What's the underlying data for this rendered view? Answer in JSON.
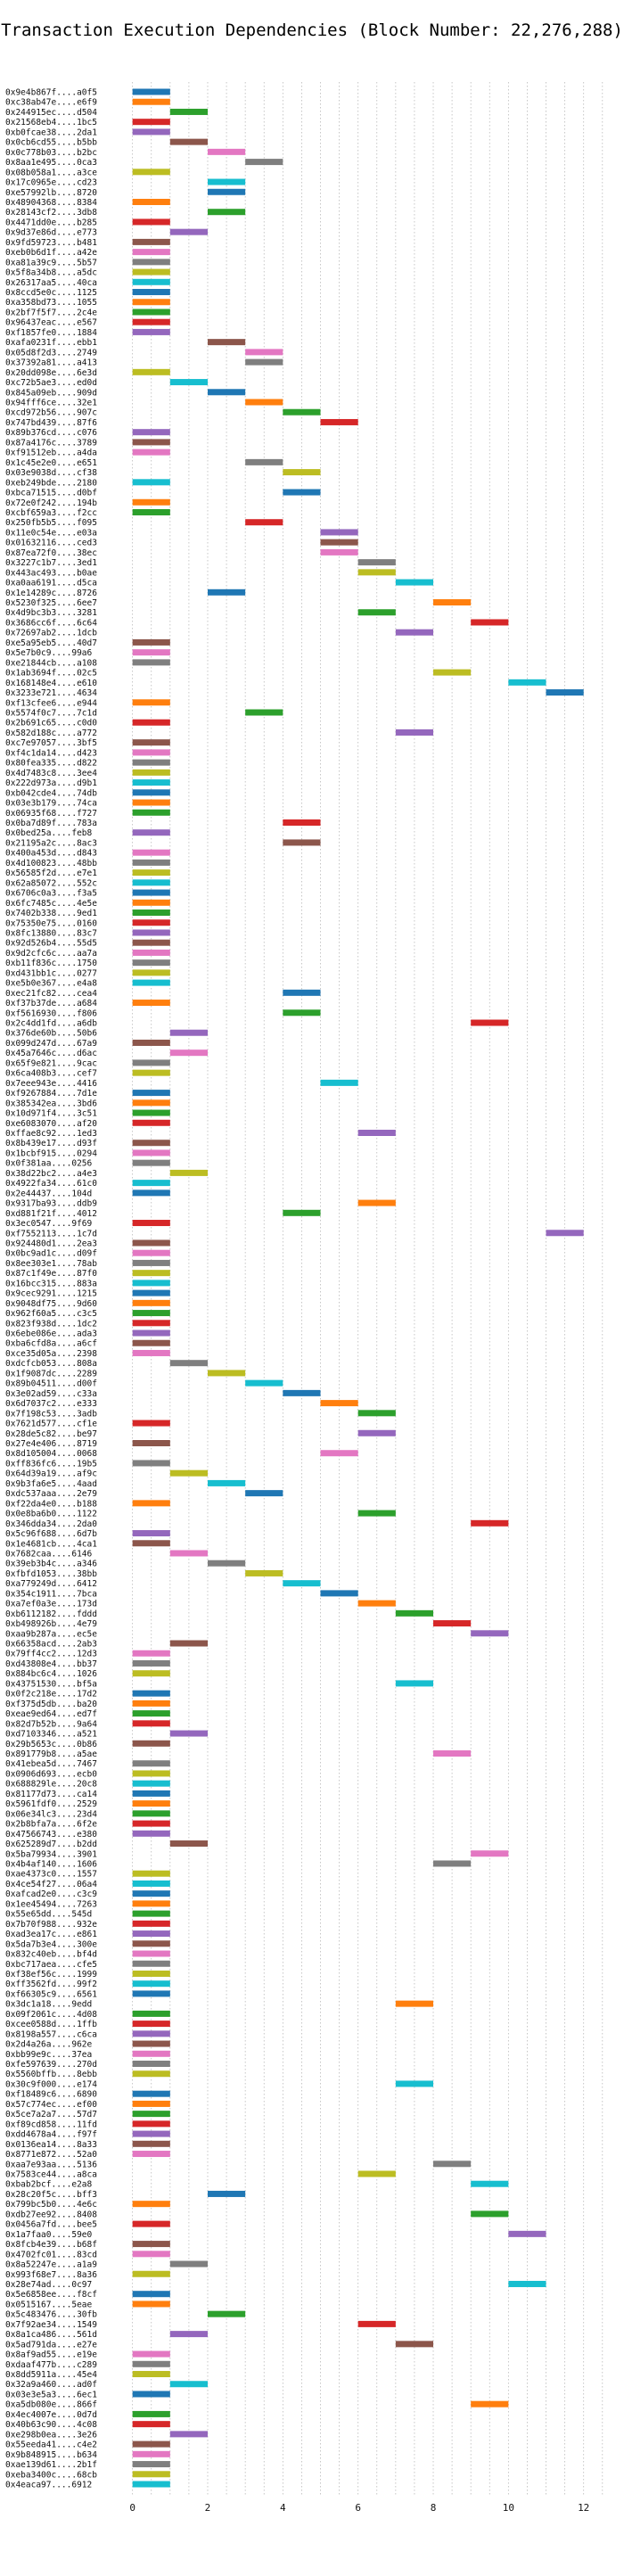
{
  "chart_data": {
    "type": "gantt",
    "title": "Transaction Execution Dependencies (Block Number: 22,276,288)",
    "xlabel": "",
    "ylabel": "",
    "xlim": [
      -0.3,
      12.6
    ],
    "x_ticks": [
      0,
      2,
      4,
      6,
      8,
      10,
      12
    ],
    "grid": true,
    "palette": [
      "#1f77b4",
      "#ff7f0e",
      "#2ca02c",
      "#d62728",
      "#9467bd",
      "#8c564b",
      "#e377c2",
      "#7f7f7f",
      "#bcbd22",
      "#17becf"
    ],
    "rows": [
      {
        "label": "0x9e4b867f....a0f5",
        "start": 0
      },
      {
        "label": "0xc38ab47e....e6f9",
        "start": 0
      },
      {
        "label": "0x244915ec....d504",
        "start": 1
      },
      {
        "label": "0x21568eb4....1bc5",
        "start": 0
      },
      {
        "label": "0xb0fcae38....2da1",
        "start": 0
      },
      {
        "label": "0x0cb6cd55....b5bb",
        "start": 1
      },
      {
        "label": "0x0c778b03....b2bc",
        "start": 2
      },
      {
        "label": "0x8aa1e495....0ca3",
        "start": 3
      },
      {
        "label": "0x08b058a1....a3ce",
        "start": 0
      },
      {
        "label": "0x17c0965e....cd23",
        "start": 2
      },
      {
        "label": "0xe57992lb....8720",
        "start": 2
      },
      {
        "label": "0x48904368....8384",
        "start": 0
      },
      {
        "label": "0x28143cf2....3db8",
        "start": 2
      },
      {
        "label": "0x4471dd0e....b285",
        "start": 0
      },
      {
        "label": "0x9d37e86d....e773",
        "start": 1
      },
      {
        "label": "0x9fd59723....b481",
        "start": 0
      },
      {
        "label": "0xeb0b6d1f....a42e",
        "start": 0
      },
      {
        "label": "0xa81a39c9....5b57",
        "start": 0
      },
      {
        "label": "0x5f8a34b8....a5dc",
        "start": 0
      },
      {
        "label": "0x26317aa5....40ca",
        "start": 0
      },
      {
        "label": "0x8ccd5e0c....1125",
        "start": 0
      },
      {
        "label": "0xa358bd73....1055",
        "start": 0
      },
      {
        "label": "0x2bf7f5f7....2c4e",
        "start": 0
      },
      {
        "label": "0x96437eac....e567",
        "start": 0
      },
      {
        "label": "0xf1857fe0....1884",
        "start": 0
      },
      {
        "label": "0xafa0231f....ebb1",
        "start": 2
      },
      {
        "label": "0x05d8f2d3....2749",
        "start": 3
      },
      {
        "label": "0x37392a81....a413",
        "start": 3
      },
      {
        "label": "0x20dd098e....6e3d",
        "start": 0
      },
      {
        "label": "0xc72b5ae3....ed0d",
        "start": 1
      },
      {
        "label": "0x845a09eb....909d",
        "start": 2
      },
      {
        "label": "0x94fff6ce....32e1",
        "start": 3
      },
      {
        "label": "0xcd972b56....907c",
        "start": 4
      },
      {
        "label": "0x747bd439....87f6",
        "start": 5
      },
      {
        "label": "0x89b376cd....c076",
        "start": 0
      },
      {
        "label": "0x87a4176c....3789",
        "start": 0
      },
      {
        "label": "0xf91512eb....a4da",
        "start": 0
      },
      {
        "label": "0x1c45e2e0....e651",
        "start": 3
      },
      {
        "label": "0x03e9038d....cf38",
        "start": 4
      },
      {
        "label": "0xeb249bde....2180",
        "start": 0
      },
      {
        "label": "0xbca71515....d0bf",
        "start": 4
      },
      {
        "label": "0x72e0f242....194b",
        "start": 0
      },
      {
        "label": "0xcbf659a3....f2cc",
        "start": 0
      },
      {
        "label": "0x250fb5b5....f095",
        "start": 3
      },
      {
        "label": "0x11e0c54e....e03a",
        "start": 5
      },
      {
        "label": "0x01632116....ced3",
        "start": 5
      },
      {
        "label": "0x87ea72f0....38ec",
        "start": 5
      },
      {
        "label": "0x3227c1b7....3ed1",
        "start": 6
      },
      {
        "label": "0x443ac493....b0ae",
        "start": 6
      },
      {
        "label": "0xa0aa6191....d5ca",
        "start": 7
      },
      {
        "label": "0x1e14289c....8726",
        "start": 2
      },
      {
        "label": "0x5230f325....6ee7",
        "start": 8
      },
      {
        "label": "0x4d9bc3b3....3281",
        "start": 6
      },
      {
        "label": "0x3686cc6f....6c64",
        "start": 9
      },
      {
        "label": "0x72697ab2....1dcb",
        "start": 7
      },
      {
        "label": "0xe5a95eb5....40d7",
        "start": 0
      },
      {
        "label": "0x5e7b0c9....99a6",
        "start": 0
      },
      {
        "label": "0xe21844cb....a108",
        "start": 0
      },
      {
        "label": "0x1ab3694f....02c5",
        "start": 8
      },
      {
        "label": "0x168148e4....e610",
        "start": 10
      },
      {
        "label": "0x3233e721....4634",
        "start": 11
      },
      {
        "label": "0xf13cfee6....e944",
        "start": 0
      },
      {
        "label": "0x5574f0c7....7c1d",
        "start": 3
      },
      {
        "label": "0x2b691c65....c0d0",
        "start": 0
      },
      {
        "label": "0x582d188c....a772",
        "start": 7
      },
      {
        "label": "0xc7e97057....3bf5",
        "start": 0
      },
      {
        "label": "0xf4c1da14....d423",
        "start": 0
      },
      {
        "label": "0x80fea335....d822",
        "start": 0
      },
      {
        "label": "0x4d7483c8....3ee4",
        "start": 0
      },
      {
        "label": "0x222d973a....d9b1",
        "start": 0
      },
      {
        "label": "0xb042cde4....74db",
        "start": 0
      },
      {
        "label": "0x03e3b179....74ca",
        "start": 0
      },
      {
        "label": "0x06935f68....f727",
        "start": 0
      },
      {
        "label": "0x0ba7d89f....783a",
        "start": 4
      },
      {
        "label": "0x0bed25a....feb8",
        "start": 0
      },
      {
        "label": "0x21195a2c....8ac3",
        "start": 4
      },
      {
        "label": "0x400a453d....d843",
        "start": 0
      },
      {
        "label": "0x4d100823....48bb",
        "start": 0
      },
      {
        "label": "0x56585f2d....e7e1",
        "start": 0
      },
      {
        "label": "0x62a85072....552c",
        "start": 0
      },
      {
        "label": "0x6706c0a3....f3a5",
        "start": 0
      },
      {
        "label": "0x6fc7485c....4e5e",
        "start": 0
      },
      {
        "label": "0x7402b338....9ed1",
        "start": 0
      },
      {
        "label": "0x75350e75....0160",
        "start": 0
      },
      {
        "label": "0x8fc13880....83c7",
        "start": 0
      },
      {
        "label": "0x92d526b4....55d5",
        "start": 0
      },
      {
        "label": "0x9d2cfc6c....aa7a",
        "start": 0
      },
      {
        "label": "0xb11f836c....1750",
        "start": 0
      },
      {
        "label": "0xd431bb1c....0277",
        "start": 0
      },
      {
        "label": "0xe5b0e367....e4a8",
        "start": 0
      },
      {
        "label": "0xec21fc82....cea4",
        "start": 4
      },
      {
        "label": "0xf37b37de....a684",
        "start": 0
      },
      {
        "label": "0xf5616930....f806",
        "start": 4
      },
      {
        "label": "0x2c4dd1fd....a6db",
        "start": 9
      },
      {
        "label": "0x376de60b....50b6",
        "start": 1
      },
      {
        "label": "0x099d247d....67a9",
        "start": 0
      },
      {
        "label": "0x45a7646c....d6ac",
        "start": 1
      },
      {
        "label": "0x65f9e821....9cac",
        "start": 0
      },
      {
        "label": "0x6ca408b3....cef7",
        "start": 0
      },
      {
        "label": "0x7eee943e....4416",
        "start": 5
      },
      {
        "label": "0xf9267884....7d1e",
        "start": 0
      },
      {
        "label": "0x385342ea....3bd6",
        "start": 0
      },
      {
        "label": "0x10d971f4....3c51",
        "start": 0
      },
      {
        "label": "0xe6083070....af20",
        "start": 0
      },
      {
        "label": "0xffae8c92....1ed3",
        "start": 6
      },
      {
        "label": "0x8b439e17....d93f",
        "start": 0
      },
      {
        "label": "0x1bcbf915....0294",
        "start": 0
      },
      {
        "label": "0x0f381aa....0256",
        "start": 0
      },
      {
        "label": "0x38d22bc2....a4e3",
        "start": 1
      },
      {
        "label": "0x4922fa34....61c0",
        "start": 0
      },
      {
        "label": "0x2e44437....104d",
        "start": 0
      },
      {
        "label": "0x9317ba93....ddb9",
        "start": 6
      },
      {
        "label": "0xd881f21f....4012",
        "start": 4
      },
      {
        "label": "0x3ec0547....9f69",
        "start": 0
      },
      {
        "label": "0xf7552113....1c7d",
        "start": 11
      },
      {
        "label": "0x924480d1....2ea3",
        "start": 0
      },
      {
        "label": "0x0bc9ad1c....d09f",
        "start": 0
      },
      {
        "label": "0x8ee303e1....78ab",
        "start": 0
      },
      {
        "label": "0x87c1f49e....87f0",
        "start": 0
      },
      {
        "label": "0x16bcc315....883a",
        "start": 0
      },
      {
        "label": "0x9cec9291....1215",
        "start": 0
      },
      {
        "label": "0x9048df75....9d60",
        "start": 0
      },
      {
        "label": "0x962f60a5....c3c5",
        "start": 0
      },
      {
        "label": "0x823f938d....1dc2",
        "start": 0
      },
      {
        "label": "0x6ebe086e....ada3",
        "start": 0
      },
      {
        "label": "0xba6cfd8a....a6cf",
        "start": 0
      },
      {
        "label": "0xce35d05a....2398",
        "start": 0
      },
      {
        "label": "0xdcfcb053....808a",
        "start": 1
      },
      {
        "label": "0x1f9087dc....2289",
        "start": 2
      },
      {
        "label": "0x89b04511....d00f",
        "start": 3
      },
      {
        "label": "0x3e02ad59....c33a",
        "start": 4
      },
      {
        "label": "0x6d7037c2....e333",
        "start": 5
      },
      {
        "label": "0x7f198c53....3adb",
        "start": 6
      },
      {
        "label": "0x7621d577....cf1e",
        "start": 0
      },
      {
        "label": "0x28de5c82....be97",
        "start": 6
      },
      {
        "label": "0x27e4e406....8719",
        "start": 0
      },
      {
        "label": "0x8d105004....0068",
        "start": 5
      },
      {
        "label": "0xff836fc6....19b5",
        "start": 0
      },
      {
        "label": "0x64d39a19....af9c",
        "start": 1
      },
      {
        "label": "0x9b3fa6e5....4aad",
        "start": 2
      },
      {
        "label": "0xdc537aaa....2e79",
        "start": 3
      },
      {
        "label": "0xf22da4e0....b188",
        "start": 0
      },
      {
        "label": "0x0e8ba6b0....1122",
        "start": 6
      },
      {
        "label": "0x346dda34....2da0",
        "start": 9
      },
      {
        "label": "0x5c96f688....6d7b",
        "start": 0
      },
      {
        "label": "0x1e4681cb....4ca1",
        "start": 0
      },
      {
        "label": "0x7682caa....6146",
        "start": 1
      },
      {
        "label": "0x39eb3b4c....a346",
        "start": 2
      },
      {
        "label": "0xfbfd1053....38bb",
        "start": 3
      },
      {
        "label": "0xa779249d....6412",
        "start": 4
      },
      {
        "label": "0x354c1911....7bca",
        "start": 5
      },
      {
        "label": "0xa7ef0a3e....173d",
        "start": 6
      },
      {
        "label": "0xb6112182....fddd",
        "start": 7
      },
      {
        "label": "0xb498926b....4e79",
        "start": 8
      },
      {
        "label": "0xaa9b287a....ec5e",
        "start": 9
      },
      {
        "label": "0x66358acd....2ab3",
        "start": 1
      },
      {
        "label": "0x79ff4cc2....12d3",
        "start": 0
      },
      {
        "label": "0xd43808e4....bb37",
        "start": 0
      },
      {
        "label": "0x884bc6c4....1026",
        "start": 0
      },
      {
        "label": "0x43751530....bf5a",
        "start": 7
      },
      {
        "label": "0x0f2c218e....17d2",
        "start": 0
      },
      {
        "label": "0xf375d5db....ba20",
        "start": 0
      },
      {
        "label": "0xeae9ed64....ed7f",
        "start": 0
      },
      {
        "label": "0x82d7b52b....9a64",
        "start": 0
      },
      {
        "label": "0xd7103346....a521",
        "start": 1
      },
      {
        "label": "0x29b5653c....0b86",
        "start": 0
      },
      {
        "label": "0x891779b8....a5ae",
        "start": 8
      },
      {
        "label": "0x41ebea5d....7467",
        "start": 0
      },
      {
        "label": "0x0906d693....ecb0",
        "start": 0
      },
      {
        "label": "0x688829le....20c8",
        "start": 0
      },
      {
        "label": "0x81177d73....ca14",
        "start": 0
      },
      {
        "label": "0x5961fdf0....2529",
        "start": 0
      },
      {
        "label": "0x06e34lc3....23d4",
        "start": 0
      },
      {
        "label": "0x2b8bfa7a....6f2e",
        "start": 0
      },
      {
        "label": "0x47566743....e380",
        "start": 0
      },
      {
        "label": "0x625289d7....b2dd",
        "start": 1
      },
      {
        "label": "0x5ba79934....3901",
        "start": 9
      },
      {
        "label": "0x4b4af140....1606",
        "start": 8
      },
      {
        "label": "0xae4373c0....1557",
        "start": 0
      },
      {
        "label": "0x4ce54f27....06a4",
        "start": 0
      },
      {
        "label": "0xafcad2e0....c3c9",
        "start": 0
      },
      {
        "label": "0x1ee45494....7263",
        "start": 0
      },
      {
        "label": "0x55e65dd....545d",
        "start": 0
      },
      {
        "label": "0x7b70f988....932e",
        "start": 0
      },
      {
        "label": "0xad3ea17c....e861",
        "start": 0
      },
      {
        "label": "0x5da7b3e4....300e",
        "start": 0
      },
      {
        "label": "0x832c40eb....bf4d",
        "start": 0
      },
      {
        "label": "0xbc717aea....cfe5",
        "start": 0
      },
      {
        "label": "0xf38ef56c....1999",
        "start": 0
      },
      {
        "label": "0xff3562fd....99f2",
        "start": 0
      },
      {
        "label": "0xf66305c9....6561",
        "start": 0
      },
      {
        "label": "0x3dc1a18....9edd",
        "start": 7
      },
      {
        "label": "0x09f2061c....4d08",
        "start": 0
      },
      {
        "label": "0xcee0588d....1ffb",
        "start": 0
      },
      {
        "label": "0x8198a557....c6ca",
        "start": 0
      },
      {
        "label": "0x2d4a26a....962e",
        "start": 0
      },
      {
        "label": "0xbb99e9c....37ea",
        "start": 0
      },
      {
        "label": "0xfe597639....270d",
        "start": 0
      },
      {
        "label": "0x5560bffb....8ebb",
        "start": 0
      },
      {
        "label": "0x30c9f000....e174",
        "start": 7
      },
      {
        "label": "0xf18489c6....6890",
        "start": 0
      },
      {
        "label": "0x57c774ec....ef00",
        "start": 0
      },
      {
        "label": "0x5ce7a2a7....57d7",
        "start": 0
      },
      {
        "label": "0xf89cd858....11fd",
        "start": 0
      },
      {
        "label": "0xdd4678a4....f97f",
        "start": 0
      },
      {
        "label": "0x0136ea14....8a33",
        "start": 0
      },
      {
        "label": "0x8771e872....52a0",
        "start": 0
      },
      {
        "label": "0xaa7e93aa....5136",
        "start": 8
      },
      {
        "label": "0x7583ce44....a8ca",
        "start": 6
      },
      {
        "label": "0xbab2bcf....e2a8",
        "start": 9
      },
      {
        "label": "0x28c20f5c....bff3",
        "start": 2
      },
      {
        "label": "0x799bc5b0....4e6c",
        "start": 0
      },
      {
        "label": "0xdb27ee92....8408",
        "start": 9
      },
      {
        "label": "0x0456a7fd....bee5",
        "start": 0
      },
      {
        "label": "0x1a7faa0....59e0",
        "start": 10
      },
      {
        "label": "0x8fcb4e39....b68f",
        "start": 0
      },
      {
        "label": "0x4702fc01....83cd",
        "start": 0
      },
      {
        "label": "0x8a52247e....a1a9",
        "start": 1
      },
      {
        "label": "0x993f68e7....8a36",
        "start": 0
      },
      {
        "label": "0x28e74ad....0c97",
        "start": 10
      },
      {
        "label": "0x5e6858ee....f8cf",
        "start": 0
      },
      {
        "label": "0x0515167....5eae",
        "start": 0
      },
      {
        "label": "0x5c483476....30fb",
        "start": 2
      },
      {
        "label": "0x7f92ae34....1549",
        "start": 6
      },
      {
        "label": "0x8a1ca486....561d",
        "start": 1
      },
      {
        "label": "0x5ad791da....e27e",
        "start": 7
      },
      {
        "label": "0x8af9ad55....e19e",
        "start": 0
      },
      {
        "label": "0xdaaf477b....c289",
        "start": 0
      },
      {
        "label": "0x8dd5911a....45e4",
        "start": 0
      },
      {
        "label": "0x32a9a460....ad0f",
        "start": 1
      },
      {
        "label": "0x03e3e5a3....6ec1",
        "start": 0
      },
      {
        "label": "0xa5db080e....866f",
        "start": 9
      },
      {
        "label": "0x4ec4007e....0d7d",
        "start": 0
      },
      {
        "label": "0x40b63c90....4c08",
        "start": 0
      },
      {
        "label": "0xe298b0ea....3e26",
        "start": 1
      },
      {
        "label": "0x55eeda41....c4e2",
        "start": 0
      },
      {
        "label": "0x9b848915....b634",
        "start": 0
      },
      {
        "label": "0xae139d61....2b1f",
        "start": 0
      },
      {
        "label": "0xeba3400c....68cb",
        "start": 0
      },
      {
        "label": "0x4eaca97....6912",
        "start": 0
      }
    ]
  }
}
